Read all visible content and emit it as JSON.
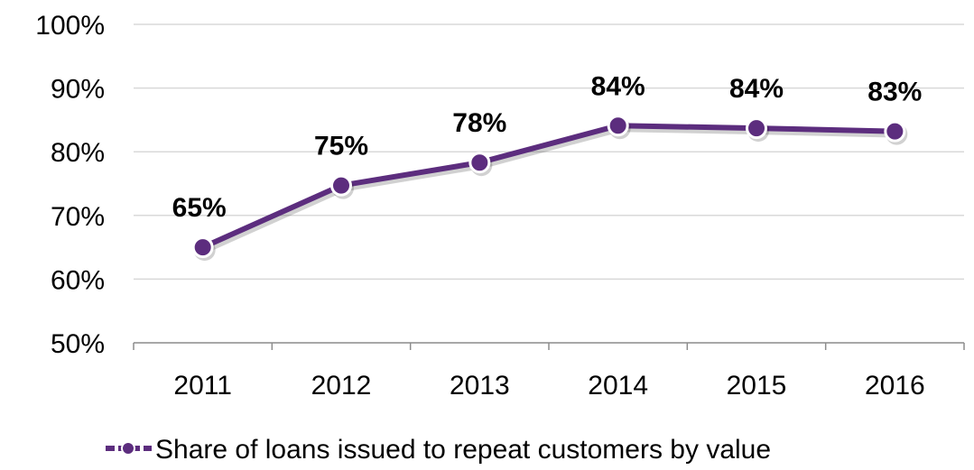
{
  "chart_data": {
    "type": "line",
    "categories": [
      "2011",
      "2012",
      "2013",
      "2014",
      "2015",
      "2016"
    ],
    "series": [
      {
        "name": "Share of loans issued to repeat customers by value",
        "values": [
          65,
          74.7,
          78.3,
          84.1,
          83.7,
          83.2
        ],
        "labels": [
          "65%",
          "75%",
          "78%",
          "84%",
          "84%",
          "83%"
        ]
      }
    ],
    "y_ticks": [
      "50%",
      "60%",
      "70%",
      "80%",
      "90%",
      "100%"
    ],
    "ylim": [
      50,
      100
    ],
    "y_tick_step": 10,
    "grid": "horizontal",
    "legend_position": "bottom",
    "line_color": "#5C2D7E",
    "grid_color": "#D9D9D9",
    "axis_color": "#8C8C8C"
  }
}
